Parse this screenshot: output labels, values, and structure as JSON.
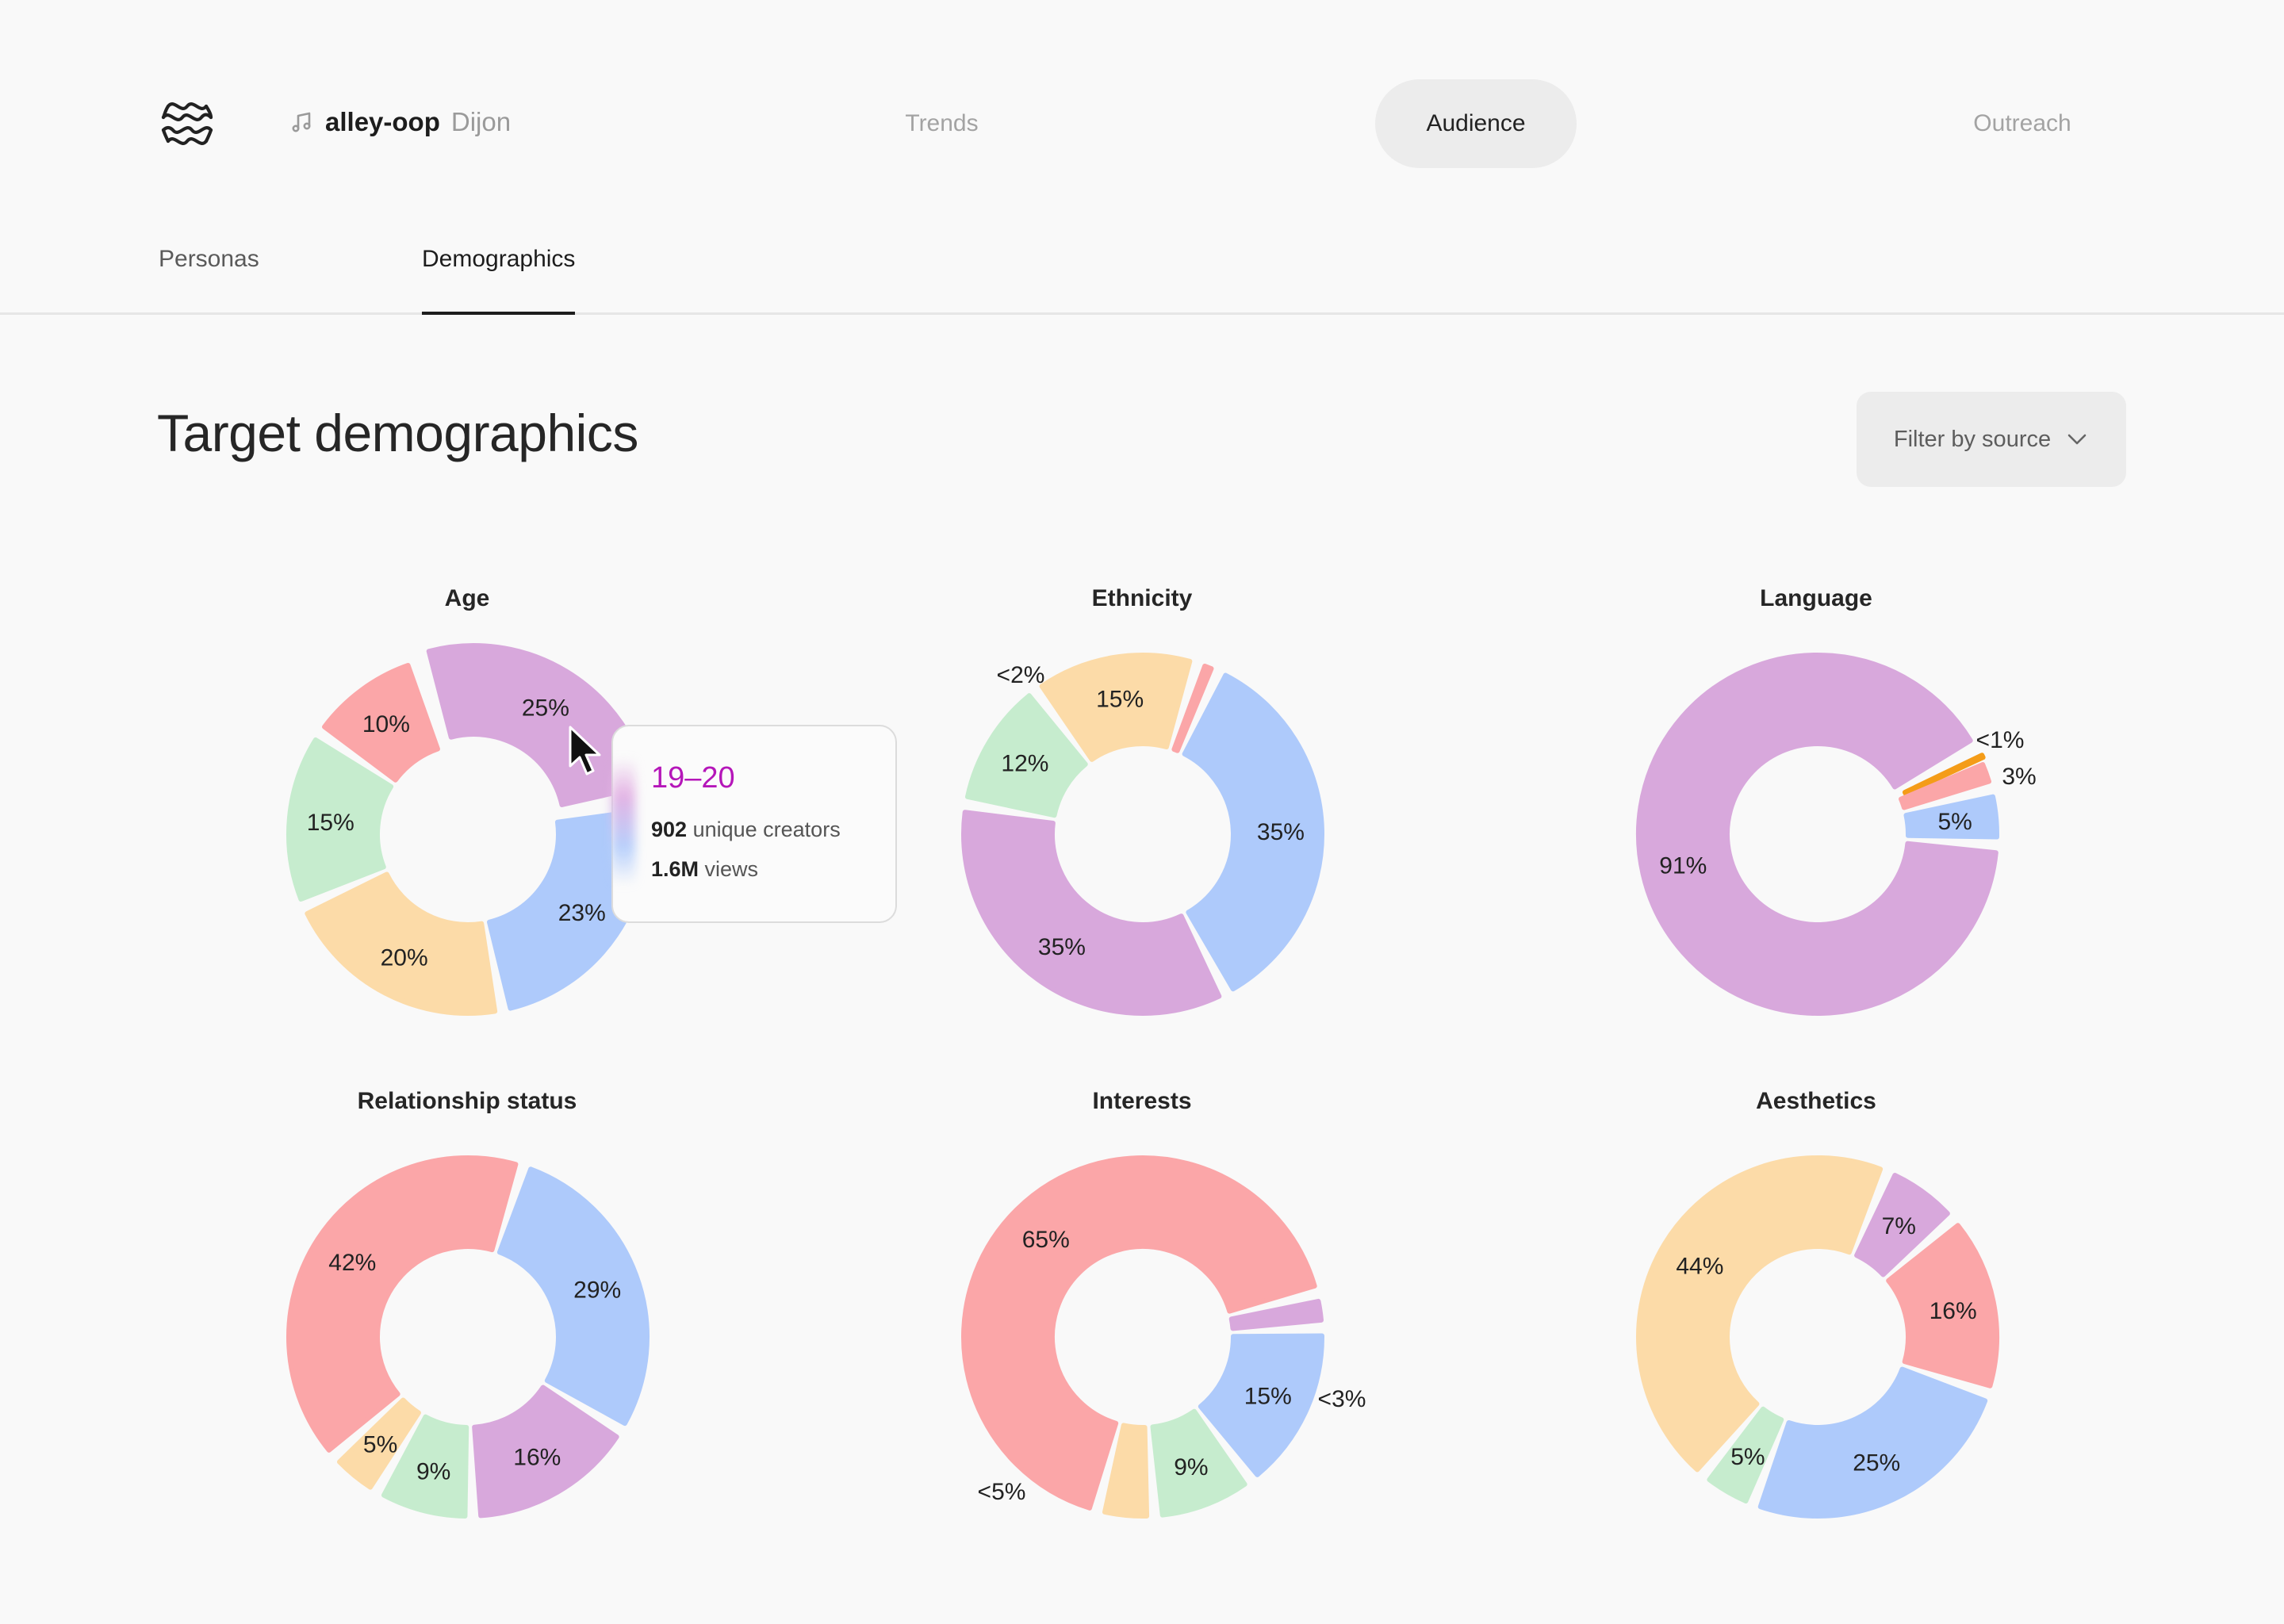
{
  "header": {
    "project_name": "alley-oop",
    "project_sub": "Dijon",
    "nav": [
      "Trends",
      "Audience",
      "Outreach"
    ],
    "active_nav": "Audience"
  },
  "subtabs": {
    "items": [
      "Personas",
      "Demographics"
    ],
    "active": "Demographics"
  },
  "page": {
    "title": "Target demographics",
    "filter_label": "Filter by source"
  },
  "colors": {
    "pink": "#fba6a8",
    "purple": "#d8a8dc",
    "green": "#c6ecce",
    "orange": "#fcdba8",
    "blue": "#aecafb",
    "orange_line": "#f49c18",
    "accent": "#b516b9"
  },
  "tooltip": {
    "title": "19–20",
    "creators_value": "902",
    "creators_label": "unique creators",
    "views_value": "1.6M",
    "views_label": "views"
  },
  "chart_data": [
    {
      "type": "pie",
      "title": "Age",
      "slices": [
        {
          "label": "25%",
          "value": 25,
          "color": "purple"
        },
        {
          "label": "23%",
          "value": 23,
          "color": "blue"
        },
        {
          "label": "20%",
          "value": 20,
          "color": "orange"
        },
        {
          "label": "15%",
          "value": 15,
          "color": "green"
        },
        {
          "label": "10%",
          "value": 10,
          "color": "pink"
        }
      ]
    },
    {
      "type": "pie",
      "title": "Ethnicity",
      "slices": [
        {
          "label": "35%",
          "value": 35,
          "color": "blue"
        },
        {
          "label": "35%",
          "value": 35,
          "color": "purple"
        },
        {
          "label": "12%",
          "value": 12,
          "color": "green"
        },
        {
          "label": "15%",
          "value": 15,
          "color": "orange"
        },
        {
          "label": "<2%",
          "value": 2,
          "color": "pink"
        }
      ]
    },
    {
      "type": "pie",
      "title": "Language",
      "slices": [
        {
          "label": "<1%",
          "value": 1,
          "color": "orange_line"
        },
        {
          "label": "3%",
          "value": 3,
          "color": "pink"
        },
        {
          "label": "5%",
          "value": 5,
          "color": "blue"
        },
        {
          "label": "91%",
          "value": 91,
          "color": "purple"
        }
      ]
    },
    {
      "type": "pie",
      "title": "Relationship status",
      "slices": [
        {
          "label": "29%",
          "value": 29,
          "color": "blue"
        },
        {
          "label": "16%",
          "value": 16,
          "color": "purple"
        },
        {
          "label": "9%",
          "value": 9,
          "color": "green"
        },
        {
          "label": "5%",
          "value": 5,
          "color": "orange"
        },
        {
          "label": "42%",
          "value": 42,
          "color": "pink"
        }
      ]
    },
    {
      "type": "pie",
      "title": "Interests",
      "slices": [
        {
          "label": "<3%",
          "value": 3,
          "color": "purple"
        },
        {
          "label": "15%",
          "value": 15,
          "color": "blue"
        },
        {
          "label": "9%",
          "value": 9,
          "color": "green"
        },
        {
          "label": "<5%",
          "value": 5,
          "color": "orange"
        },
        {
          "label": "65%",
          "value": 65,
          "color": "pink"
        }
      ]
    },
    {
      "type": "pie",
      "title": "Aesthetics",
      "slices": [
        {
          "label": "7%",
          "value": 7,
          "color": "purple"
        },
        {
          "label": "16%",
          "value": 16,
          "color": "pink"
        },
        {
          "label": "25%",
          "value": 25,
          "color": "blue"
        },
        {
          "label": "5%",
          "value": 5,
          "color": "green"
        },
        {
          "label": "44%",
          "value": 44,
          "color": "orange"
        }
      ]
    }
  ]
}
